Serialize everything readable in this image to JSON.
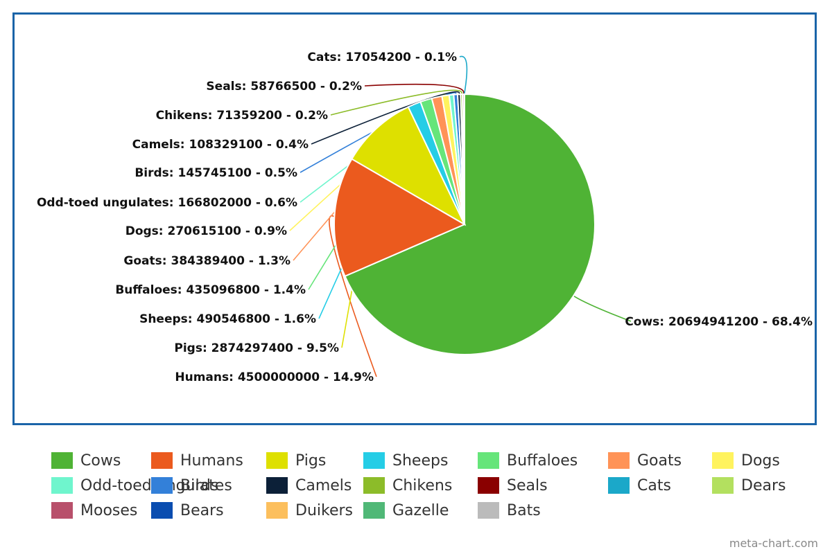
{
  "chart_data": {
    "type": "pie",
    "slices": [
      {
        "label": "Cows",
        "value": 20694941200,
        "percent": "68.4%",
        "color": "#4fb335",
        "callout": "Cows: 20694941200 - 68.4%"
      },
      {
        "label": "Humans",
        "value": 4500000000,
        "percent": "14.9%",
        "color": "#eb5a1e",
        "callout": "Humans: 4500000000 - 14.9%"
      },
      {
        "label": "Pigs",
        "value": 2874297400,
        "percent": "9.5%",
        "color": "#dee000",
        "callout": "Pigs: 2874297400 - 9.5%"
      },
      {
        "label": "Sheeps",
        "value": 490546800,
        "percent": "1.6%",
        "color": "#25cde6",
        "callout": "Sheeps: 490546800 - 1.6%"
      },
      {
        "label": "Buffaloes",
        "value": 435096800,
        "percent": "1.4%",
        "color": "#66e57a",
        "callout": "Buffaloes: 435096800 - 1.4%"
      },
      {
        "label": "Goats",
        "value": 384389400,
        "percent": "1.3%",
        "color": "#ff9357",
        "callout": "Goats: 384389400 - 1.3%"
      },
      {
        "label": "Dogs",
        "value": 270615100,
        "percent": "0.9%",
        "color": "#fff35e",
        "callout": "Dogs: 270615100 - 0.9%"
      },
      {
        "label": "Odd-toed ungulates",
        "value": 166802000,
        "percent": "0.6%",
        "color": "#6ff5cd",
        "callout": "Odd-toed ungulates: 166802000 - 0.6%"
      },
      {
        "label": "Birds",
        "value": 145745100,
        "percent": "0.5%",
        "color": "#3380d9",
        "callout": "Birds: 145745100 - 0.5%"
      },
      {
        "label": "Camels",
        "value": 108329100,
        "percent": "0.4%",
        "color": "#0c2038",
        "callout": "Camels: 108329100 - 0.4%"
      },
      {
        "label": "Chikens",
        "value": 71359200,
        "percent": "0.2%",
        "color": "#8cbc29",
        "callout": "Chikens: 71359200 - 0.2%"
      },
      {
        "label": "Seals",
        "value": 58766500,
        "percent": "0.2%",
        "color": "#8a0000",
        "callout": "Seals: 58766500 - 0.2%"
      },
      {
        "label": "Cats",
        "value": 17054200,
        "percent": "0.1%",
        "color": "#1ba8c9",
        "callout": "Cats: 17054200 - 0.1%"
      }
    ],
    "legend": [
      {
        "label": "Cows",
        "color": "#4fb335"
      },
      {
        "label": "Humans",
        "color": "#eb5a1e"
      },
      {
        "label": "Pigs",
        "color": "#dee000"
      },
      {
        "label": "Sheeps",
        "color": "#25cde6"
      },
      {
        "label": "Buffaloes",
        "color": "#66e57a"
      },
      {
        "label": "Goats",
        "color": "#ff9357"
      },
      {
        "label": "Dogs",
        "color": "#fff35e"
      },
      {
        "label": "Odd-toed ungulates",
        "color": "#6ff5cd"
      },
      {
        "label": "Birds",
        "color": "#3380d9"
      },
      {
        "label": "Camels",
        "color": "#0c2038"
      },
      {
        "label": "Chikens",
        "color": "#8cbc29"
      },
      {
        "label": "Seals",
        "color": "#8a0000"
      },
      {
        "label": "Cats",
        "color": "#1ba8c9"
      },
      {
        "label": "Dears",
        "color": "#b3e05f"
      },
      {
        "label": "Mooses",
        "color": "#b8506b"
      },
      {
        "label": "Bears",
        "color": "#0a4db0"
      },
      {
        "label": "Duikers",
        "color": "#fcbf5d"
      },
      {
        "label": "Gazelle",
        "color": "#50b877"
      },
      {
        "label": "Bats",
        "color": "#bbbbbb"
      }
    ],
    "legend_placement": "bottom",
    "frame_color": "#1a64a8"
  },
  "footer": {
    "credit": "meta-chart.com"
  }
}
